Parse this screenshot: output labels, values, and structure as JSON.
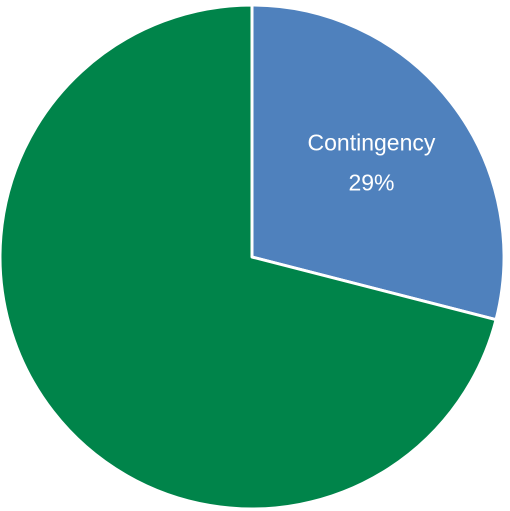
{
  "chart_data": {
    "type": "pie",
    "categories": [
      "Contingency",
      null
    ],
    "values": [
      29,
      71
    ],
    "value_labels": [
      "29%",
      null
    ],
    "colors": [
      "#4f81bd",
      "#00844a"
    ]
  }
}
